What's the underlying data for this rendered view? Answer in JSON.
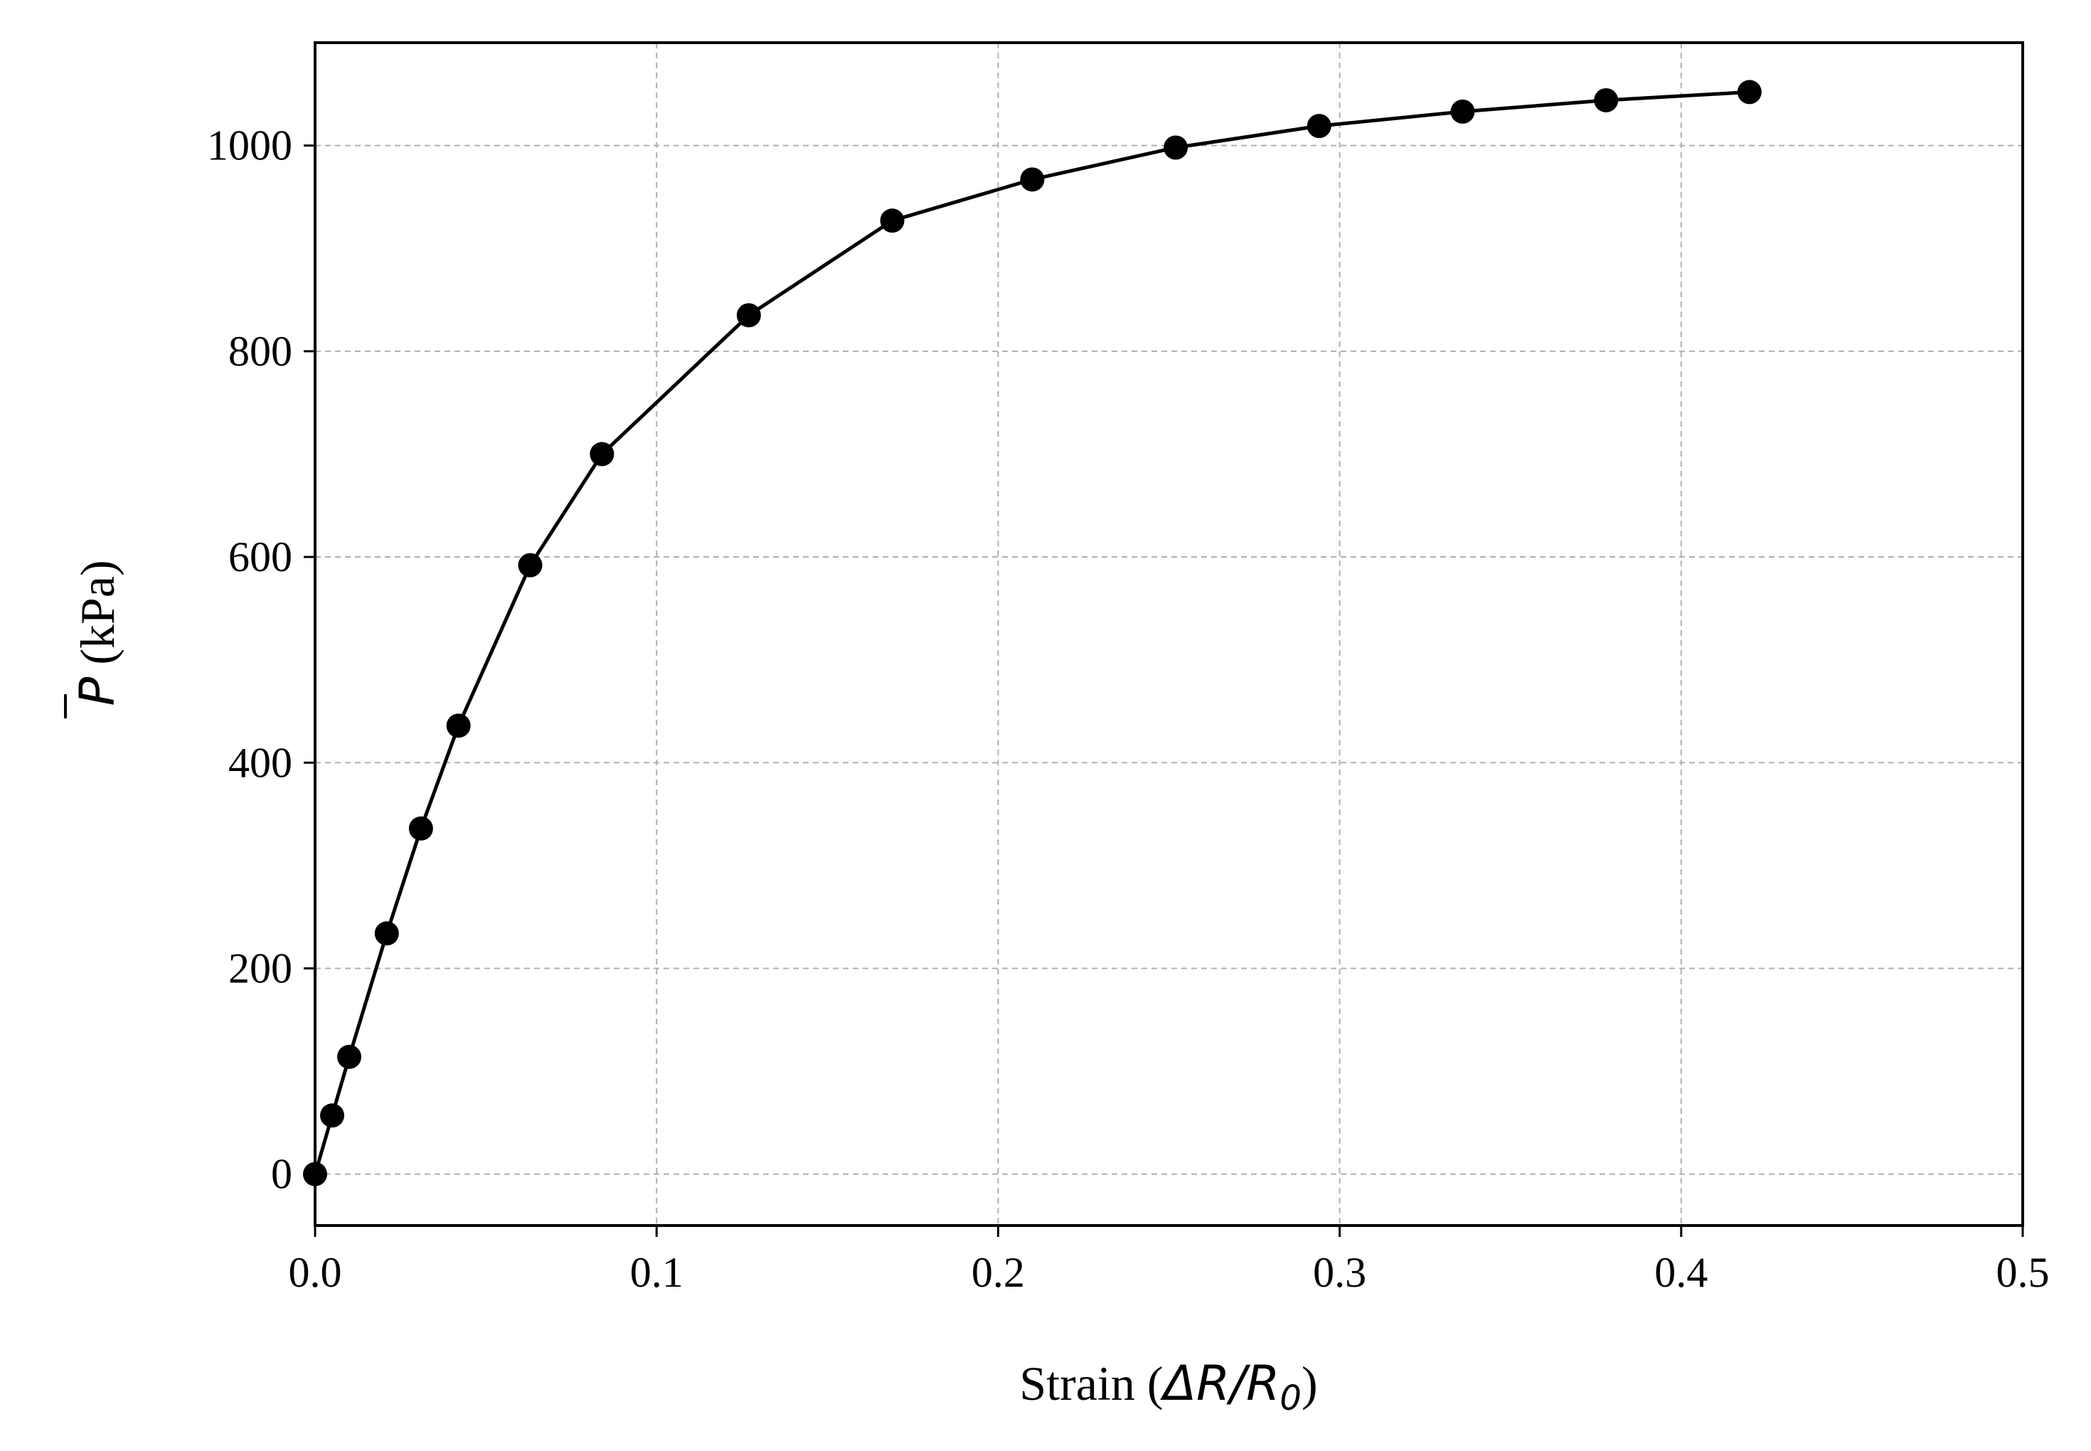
{
  "chart_data": {
    "type": "line",
    "title": "",
    "xlabel": "Strain (ΔR/R₀)",
    "xlabel_parts": {
      "prefix": "Strain (",
      "math": "ΔR/R",
      "sub": "0",
      "suffix": ")"
    },
    "ylabel": "P̄ (kPa)",
    "ylabel_parts": {
      "math": "P",
      "text": " (kPa)"
    },
    "xlim": [
      0.0,
      0.5
    ],
    "ylim": [
      -50,
      1100
    ],
    "xticks": [
      0.0,
      0.1,
      0.2,
      0.3,
      0.4,
      0.5
    ],
    "xtick_labels": [
      "0.0",
      "0.1",
      "0.2",
      "0.3",
      "0.4",
      "0.5"
    ],
    "yticks": [
      0,
      200,
      400,
      600,
      800,
      1000
    ],
    "ytick_labels": [
      "0",
      "200",
      "400",
      "600",
      "800",
      "1000"
    ],
    "grid": true,
    "legend": "none",
    "series": [
      {
        "color": "#000000",
        "marker": "circle",
        "x": [
          0.0,
          0.005,
          0.01,
          0.021,
          0.031,
          0.042,
          0.063,
          0.084,
          0.127,
          0.169,
          0.21,
          0.252,
          0.294,
          0.336,
          0.378,
          0.42
        ],
        "y": [
          0,
          57,
          114,
          234,
          336,
          436,
          592,
          700,
          835,
          927,
          967,
          998,
          1019,
          1033,
          1044,
          1052
        ]
      }
    ]
  }
}
